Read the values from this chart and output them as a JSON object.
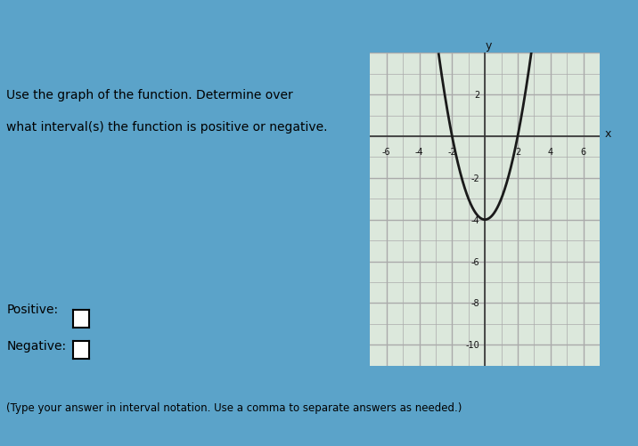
{
  "title": "",
  "xlim": [
    -7,
    7
  ],
  "ylim": [
    -11,
    4
  ],
  "xticks": [
    -6,
    -4,
    -2,
    2,
    4,
    6
  ],
  "yticks": [
    -10,
    -8,
    -6,
    -4,
    -2,
    2
  ],
  "xlabel": "x",
  "ylabel": "y",
  "curve_color": "#1a1a1a",
  "grid_color": "#aaaaaa",
  "axis_color": "#333333",
  "bg_color": "#dce8dc",
  "outer_bg": "#5ba3c9",
  "text_color": "#111111",
  "font_size_labels": 9,
  "font_size_text": 10,
  "positive_label": "Positive:",
  "negative_label": "Negative:",
  "instruction_line1": "Use the graph of the function. Determine over",
  "instruction_line2": "what interval(s) the function is positive or negative.",
  "footnote": "(Type your answer in interval notation. Use a comma to separate answers as needed.)"
}
